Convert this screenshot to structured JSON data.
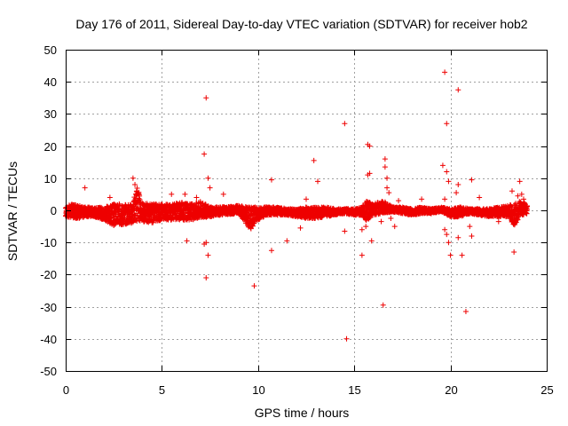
{
  "colors": {
    "series": "#ee0000",
    "grid": "#a0a0a0",
    "frame": "#000000",
    "background": "#ffffff"
  },
  "chart_data": {
    "type": "scatter",
    "title": "Day 176 of 2011, Sidereal Day-to-day VTEC variation (SDTVAR) for receiver hob2",
    "xlabel": "GPS time / hours",
    "ylabel": "SDTVAR / TECUs",
    "xlim": [
      0,
      25
    ],
    "ylim": [
      -50,
      50
    ],
    "xticks": [
      0,
      5,
      10,
      15,
      20,
      25
    ],
    "yticks": [
      -50,
      -40,
      -30,
      -20,
      -10,
      0,
      10,
      20,
      30,
      40,
      50
    ],
    "grid": true,
    "marker": "+",
    "series": [
      {
        "name": "SDTVAR",
        "band": [
          [
            0.0,
            -2.0,
            1.0
          ],
          [
            0.3,
            -2.5,
            2.0
          ],
          [
            0.7,
            -2.5,
            1.5
          ],
          [
            1.0,
            -2.0,
            1.0
          ],
          [
            1.5,
            -2.0,
            1.0
          ],
          [
            2.0,
            -3.0,
            1.0
          ],
          [
            2.5,
            -5.0,
            2.0
          ],
          [
            3.0,
            -4.5,
            2.0
          ],
          [
            3.5,
            -4.0,
            2.0
          ],
          [
            3.7,
            -4.0,
            9.0
          ],
          [
            3.9,
            -3.5,
            2.5
          ],
          [
            4.5,
            -4.0,
            2.0
          ],
          [
            5.0,
            -3.0,
            2.0
          ],
          [
            5.5,
            -3.0,
            2.0
          ],
          [
            6.0,
            -3.0,
            2.5
          ],
          [
            6.5,
            -3.0,
            2.0
          ],
          [
            7.0,
            -2.5,
            3.0
          ],
          [
            7.5,
            -2.0,
            1.0
          ],
          [
            8.0,
            -1.5,
            1.0
          ],
          [
            9.0,
            -1.0,
            1.5
          ],
          [
            9.6,
            -6.0,
            1.0
          ],
          [
            10.0,
            -3.0,
            1.0
          ],
          [
            10.5,
            -1.5,
            1.0
          ],
          [
            11.0,
            -1.5,
            1.0
          ],
          [
            11.5,
            -1.5,
            0.5
          ],
          [
            12.0,
            -2.0,
            0.5
          ],
          [
            12.5,
            -2.5,
            1.0
          ],
          [
            13.0,
            -2.5,
            1.0
          ],
          [
            13.5,
            -2.0,
            1.0
          ],
          [
            14.0,
            -1.5,
            0.5
          ],
          [
            14.5,
            -1.0,
            0.5
          ],
          [
            15.0,
            -1.5,
            0.5
          ],
          [
            15.4,
            -1.5,
            1.0
          ],
          [
            15.6,
            -3.5,
            3.0
          ],
          [
            16.0,
            -1.5,
            2.0
          ],
          [
            16.5,
            -1.0,
            3.0
          ],
          [
            17.0,
            -0.5,
            1.0
          ],
          [
            17.5,
            -1.0,
            1.0
          ],
          [
            18.0,
            -1.5,
            0.5
          ],
          [
            18.5,
            -1.0,
            1.0
          ],
          [
            19.0,
            -1.0,
            0.5
          ],
          [
            19.5,
            -0.5,
            1.0
          ],
          [
            20.0,
            -2.0,
            0.5
          ],
          [
            20.5,
            -2.0,
            1.0
          ],
          [
            21.0,
            -1.0,
            0.5
          ],
          [
            21.5,
            -1.5,
            0.5
          ],
          [
            22.0,
            -2.0,
            0.5
          ],
          [
            22.5,
            -2.0,
            1.0
          ],
          [
            23.0,
            -2.0,
            1.5
          ],
          [
            23.3,
            -5.0,
            2.0
          ],
          [
            23.6,
            -2.0,
            3.0
          ],
          [
            24.0,
            -1.0,
            2.0
          ]
        ],
        "points": [
          [
            1.0,
            7.0
          ],
          [
            2.3,
            4.0
          ],
          [
            3.5,
            10.0
          ],
          [
            3.6,
            8.0
          ],
          [
            3.7,
            6.0
          ],
          [
            5.5,
            5.0
          ],
          [
            6.2,
            5.0
          ],
          [
            6.3,
            -9.5
          ],
          [
            6.8,
            4.0
          ],
          [
            7.2,
            17.5
          ],
          [
            7.3,
            35.0
          ],
          [
            7.3,
            -21.0
          ],
          [
            7.3,
            -10.0
          ],
          [
            7.4,
            -14.0
          ],
          [
            7.4,
            10.0
          ],
          [
            7.5,
            7.0
          ],
          [
            7.2,
            -10.5
          ],
          [
            8.2,
            5.0
          ],
          [
            9.8,
            -23.5
          ],
          [
            10.7,
            -12.5
          ],
          [
            10.7,
            9.5
          ],
          [
            11.5,
            -9.5
          ],
          [
            12.2,
            -5.5
          ],
          [
            12.5,
            3.5
          ],
          [
            12.9,
            15.5
          ],
          [
            13.1,
            9.0
          ],
          [
            14.5,
            27.0
          ],
          [
            14.6,
            -40.0
          ],
          [
            14.5,
            -6.5
          ],
          [
            15.4,
            -14.0
          ],
          [
            15.4,
            -6.0
          ],
          [
            15.7,
            20.5
          ],
          [
            15.8,
            20.0
          ],
          [
            15.7,
            11.0
          ],
          [
            15.8,
            11.5
          ],
          [
            15.6,
            -5.0
          ],
          [
            15.9,
            -9.5
          ],
          [
            16.4,
            -3.5
          ],
          [
            16.5,
            -29.5
          ],
          [
            16.6,
            16.0
          ],
          [
            16.6,
            13.5
          ],
          [
            16.7,
            10.0
          ],
          [
            16.7,
            7.0
          ],
          [
            16.8,
            5.5
          ],
          [
            16.9,
            -2.5
          ],
          [
            17.1,
            -5.0
          ],
          [
            17.3,
            3.0
          ],
          [
            18.5,
            3.5
          ],
          [
            19.6,
            14.0
          ],
          [
            19.7,
            43.0
          ],
          [
            19.8,
            27.0
          ],
          [
            19.8,
            12.0
          ],
          [
            19.9,
            9.0
          ],
          [
            19.7,
            3.5
          ],
          [
            19.7,
            -6.0
          ],
          [
            19.8,
            -7.5
          ],
          [
            19.9,
            -10.0
          ],
          [
            20.0,
            -14.0
          ],
          [
            20.3,
            5.5
          ],
          [
            20.4,
            37.5
          ],
          [
            20.4,
            8.0
          ],
          [
            20.6,
            -14.0
          ],
          [
            20.8,
            -31.5
          ],
          [
            20.4,
            -8.5
          ],
          [
            21.1,
            9.5
          ],
          [
            21.0,
            -5.0
          ],
          [
            21.1,
            -8.0
          ],
          [
            21.5,
            4.0
          ],
          [
            22.5,
            -3.5
          ],
          [
            23.2,
            6.0
          ],
          [
            23.3,
            -13.0
          ],
          [
            23.6,
            9.0
          ],
          [
            23.5,
            4.5
          ],
          [
            23.7,
            5.0
          ],
          [
            23.8,
            3.5
          ]
        ]
      }
    ]
  }
}
